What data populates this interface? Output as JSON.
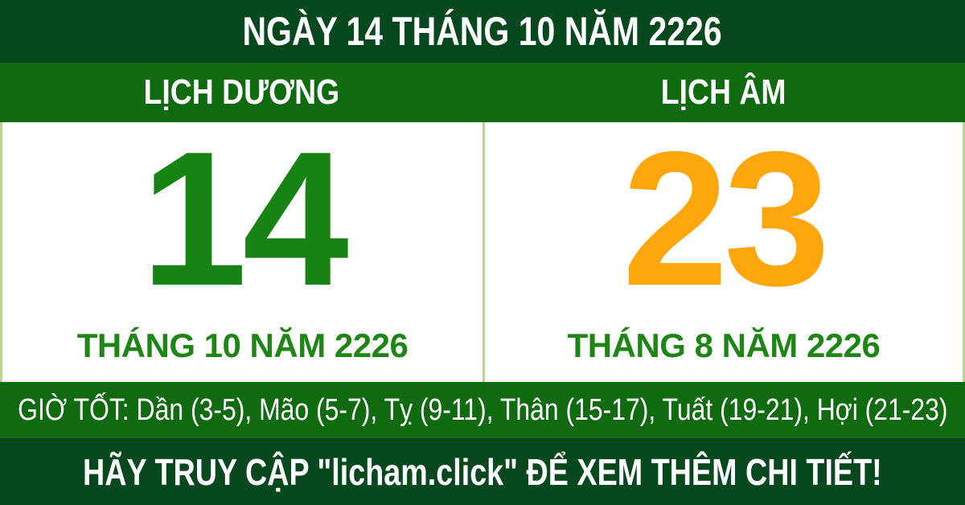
{
  "header": {
    "title": "NGÀY 14 THÁNG 10 NĂM 2226"
  },
  "calendar": {
    "solar": {
      "label": "LỊCH DƯƠNG",
      "day": "14",
      "month_year": "THÁNG 10 NĂM 2226"
    },
    "lunar": {
      "label": "LỊCH ÂM",
      "day": "23",
      "month_year": "THÁNG 8 NĂM 2226"
    }
  },
  "good_hours": {
    "text": "GIỜ TỐT: Dần (3-5), Mão (5-7), Tỵ (9-11), Thân (15-17), Tuất (19-21), Hợi (21-23)"
  },
  "footer": {
    "text": "HÃY TRUY CẬP \"licham.click\" ĐỂ XEM THÊM CHI TIẾT!"
  },
  "colors": {
    "dark_green": "#07481f",
    "medium_green": "#0f6a10",
    "solar_day_green": "#178312",
    "month_text_green": "#1d8614",
    "lunar_day_orange": "#ffa60d",
    "divider_light_green": "#b7d68d",
    "panel_white": "#ffffff"
  }
}
